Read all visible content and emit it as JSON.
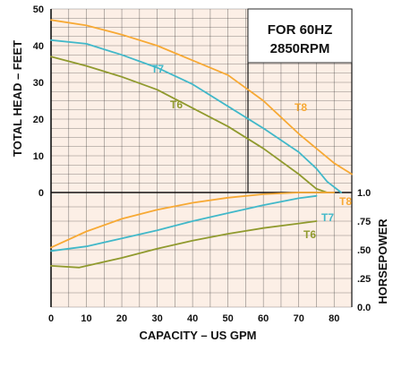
{
  "chart_data": {
    "type": "line",
    "annotation": [
      "FOR 60HZ",
      "2850RPM"
    ],
    "head_axis": {
      "label": "TOTAL HEAD – FEET",
      "range": [
        0,
        50
      ],
      "ticks": [
        0,
        10,
        20,
        30,
        40,
        50
      ]
    },
    "hp_axis": {
      "label": "HORSEPOWER",
      "range": [
        0,
        1.0
      ],
      "ticks": [
        0.0,
        0.25,
        0.5,
        0.75,
        1.0
      ],
      "tick_labels": [
        "0.0",
        ".25",
        ".50",
        ".75",
        "1.0"
      ]
    },
    "x_axis": {
      "label": "CAPACITY – US GPM",
      "range": [
        0,
        85
      ],
      "ticks": [
        0,
        10,
        20,
        30,
        40,
        50,
        60,
        70,
        80
      ]
    },
    "grid": true,
    "colors": {
      "background": "#fcefe6",
      "grid": "#2b2b2b",
      "axis_text": "#111111",
      "T8": "#f7a934",
      "T7": "#41b8c9",
      "T6": "#909a2e"
    },
    "head_series": [
      {
        "name": "T8",
        "x": [
          0,
          10,
          20,
          30,
          40,
          50,
          60,
          70,
          80,
          85
        ],
        "y": [
          47,
          45.5,
          43,
          40,
          36,
          32,
          25,
          16,
          8,
          5
        ]
      },
      {
        "name": "T7",
        "x": [
          0,
          10,
          20,
          30,
          40,
          50,
          60,
          70,
          75,
          78,
          82
        ],
        "y": [
          41.5,
          40.5,
          37.5,
          34,
          29.5,
          23.5,
          17.5,
          11,
          6.5,
          3,
          0
        ]
      },
      {
        "name": "T6",
        "x": [
          0,
          10,
          20,
          30,
          40,
          50,
          60,
          70,
          75,
          78
        ],
        "y": [
          37,
          34.5,
          31.5,
          28,
          23,
          18,
          12,
          5,
          1,
          0
        ]
      }
    ],
    "hp_series": [
      {
        "name": "T8",
        "x": [
          0,
          10,
          20,
          30,
          40,
          50,
          60,
          70,
          80
        ],
        "y": [
          0.52,
          0.66,
          0.77,
          0.85,
          0.91,
          0.955,
          0.985,
          1.0,
          1.0
        ]
      },
      {
        "name": "T7",
        "x": [
          0,
          10,
          20,
          30,
          40,
          50,
          60,
          70,
          75
        ],
        "y": [
          0.49,
          0.53,
          0.6,
          0.67,
          0.75,
          0.82,
          0.89,
          0.95,
          0.97
        ]
      },
      {
        "name": "T6",
        "x": [
          0,
          8,
          20,
          30,
          40,
          50,
          60,
          70,
          75
        ],
        "y": [
          0.36,
          0.345,
          0.43,
          0.51,
          0.58,
          0.64,
          0.69,
          0.73,
          0.75
        ]
      }
    ],
    "series_labels": {
      "head": [
        "T8",
        "T7",
        "T6"
      ],
      "hp": [
        "T8",
        "T7",
        "T6"
      ]
    }
  }
}
